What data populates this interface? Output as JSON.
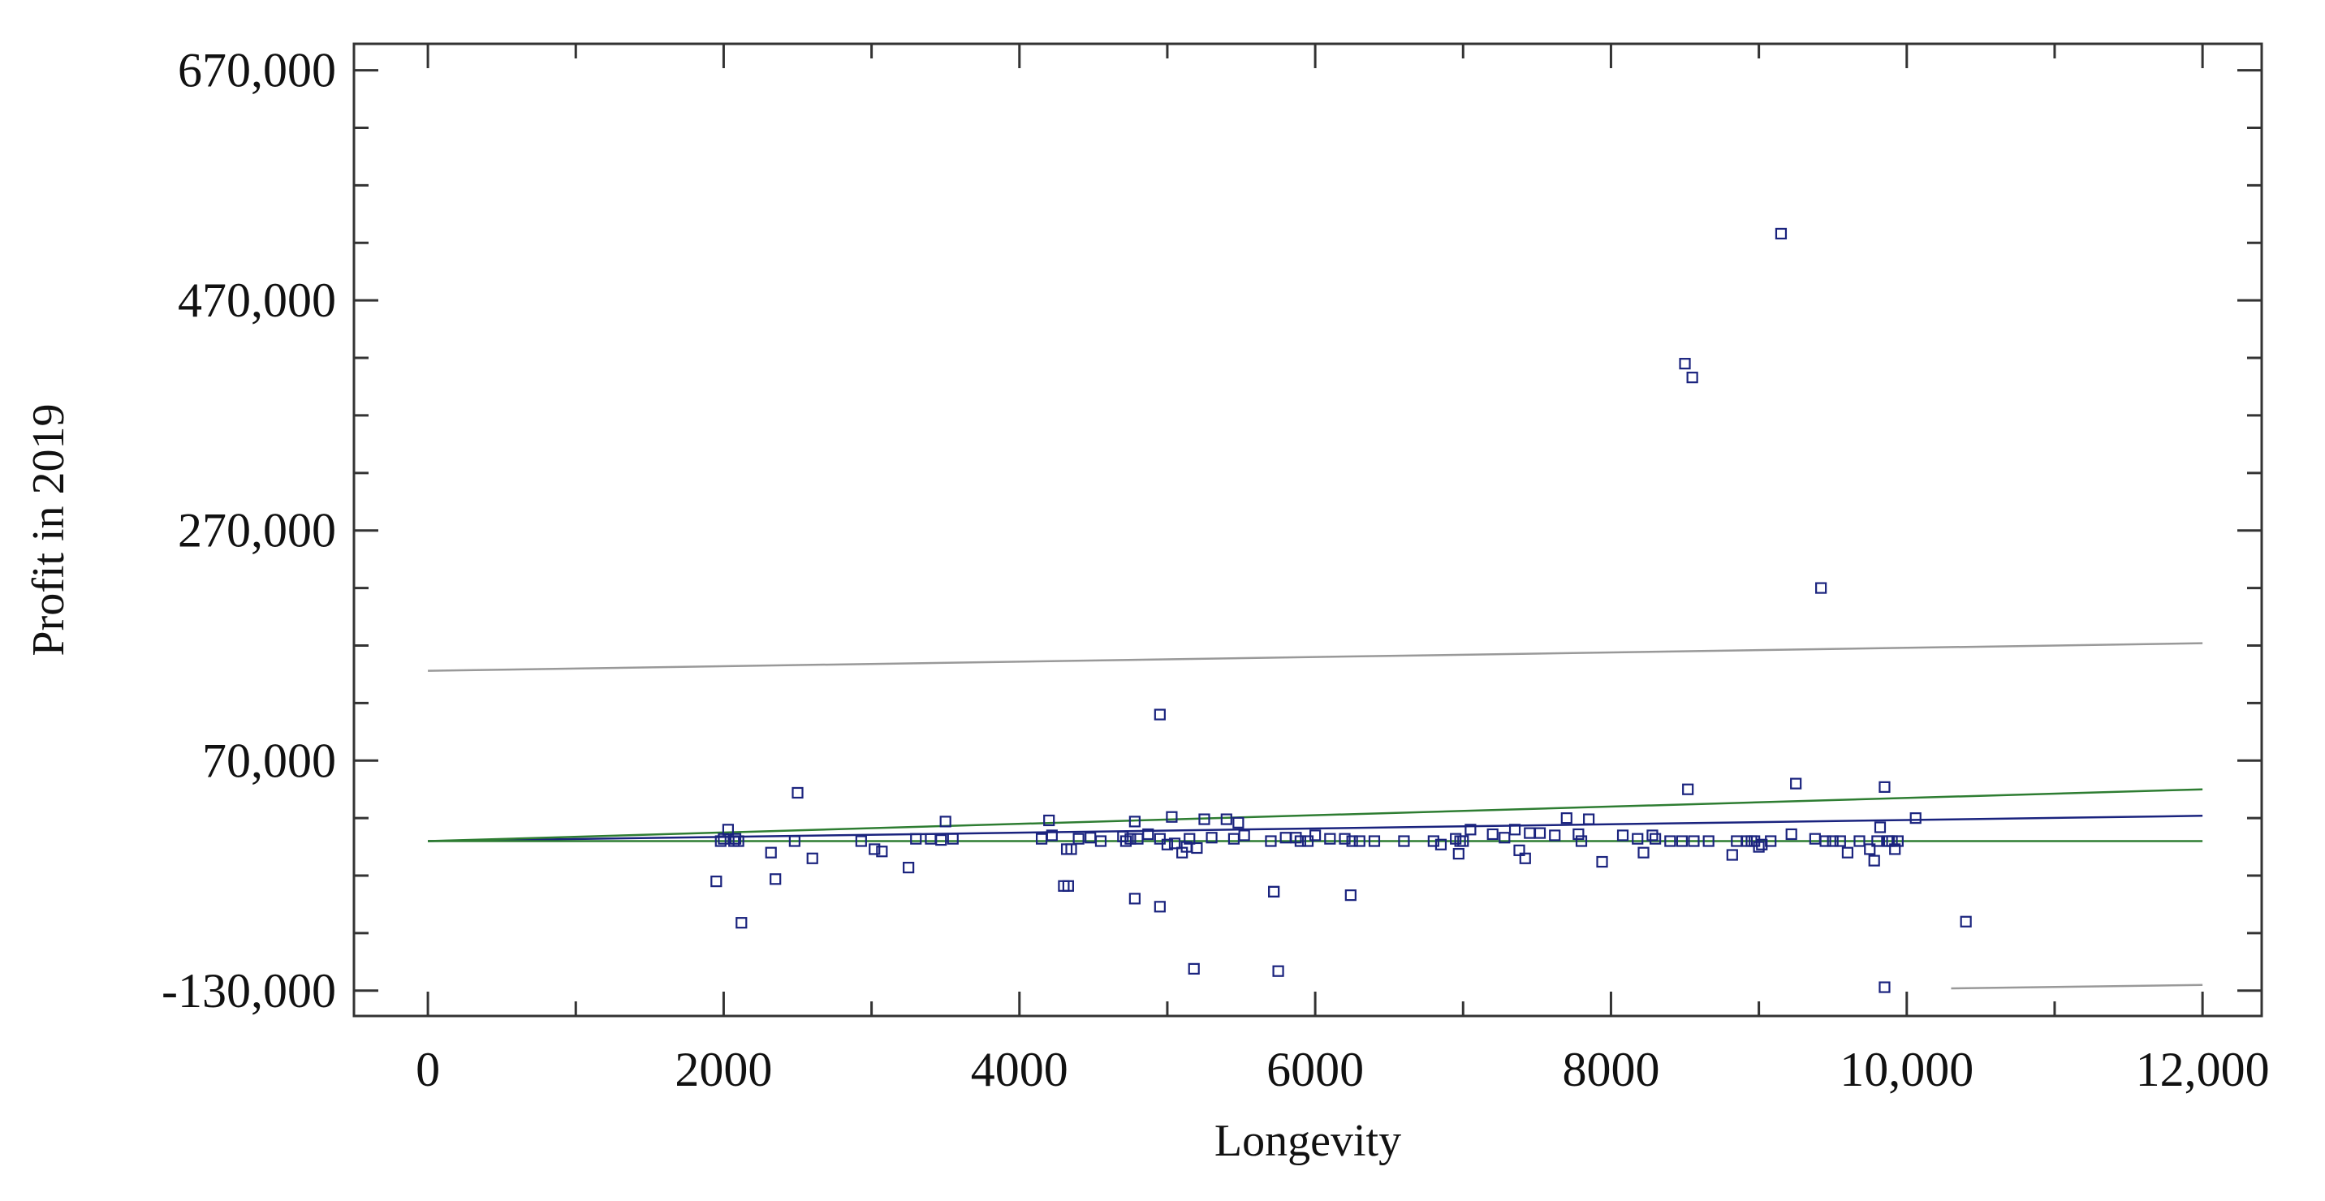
{
  "chart_data": {
    "type": "scatter",
    "xlabel": "Longevity",
    "ylabel": "Profit in 2019",
    "xlim": [
      -500,
      12400
    ],
    "ylim": [
      -152000,
      693000
    ],
    "x_ticks": [
      0,
      2000,
      4000,
      6000,
      8000,
      10000,
      12000
    ],
    "x_tick_labels": [
      "0",
      "2000",
      "4000",
      "6000",
      "8000",
      "10,000",
      "12,000"
    ],
    "y_ticks": [
      -130000,
      70000,
      270000,
      470000,
      670000
    ],
    "y_tick_labels": [
      "-130,000",
      "70,000",
      "270,000",
      "470,000",
      "670,000"
    ],
    "y_minor_step": 50000,
    "x_minor_step": 1000,
    "grid": false,
    "colors": {
      "points": "#1a237e",
      "fit_line": "#1a237e",
      "confidence_band": "#2e7d32",
      "prediction_band": "#999999",
      "frame": "#333333"
    },
    "lines": [
      {
        "role": "fit",
        "x": [
          0,
          12000
        ],
        "y": [
          0,
          22000
        ]
      },
      {
        "role": "confidence-upper",
        "x": [
          0,
          12000
        ],
        "y": [
          0,
          45000
        ]
      },
      {
        "role": "confidence-lower",
        "x": [
          0,
          12000
        ],
        "y": [
          0,
          0
        ]
      },
      {
        "role": "prediction-upper",
        "x": [
          0,
          12000
        ],
        "y": [
          148000,
          172000
        ]
      },
      {
        "role": "prediction-lower",
        "x": [
          10300,
          12000
        ],
        "y": [
          -128000,
          -125000
        ]
      }
    ],
    "points": {
      "x": [
        9150,
        8500,
        8550,
        9420,
        4950,
        2500,
        9250,
        8520,
        9850,
        1950,
        1980,
        2000,
        2030,
        2080,
        2070,
        2100,
        2320,
        2350,
        2480,
        2600,
        2930,
        3020,
        3070,
        3250,
        3300,
        3400,
        3470,
        3500,
        3550,
        4150,
        4200,
        4220,
        4300,
        4320,
        4350,
        4400,
        4480,
        4550,
        4700,
        4720,
        4750,
        4780,
        4800,
        4870,
        4950,
        5000,
        5030,
        5050,
        5100,
        5130,
        5150,
        5200,
        5250,
        5300,
        5400,
        5450,
        5480,
        5520,
        5700,
        5720,
        5800,
        5870,
        5900,
        5950,
        6000,
        6100,
        6200,
        6250,
        6300,
        6400,
        6600,
        6800,
        6850,
        6950,
        6970,
        6980,
        7000,
        7050,
        7200,
        7280,
        7350,
        7380,
        7420,
        7450,
        7520,
        7620,
        7700,
        7780,
        7800,
        7850,
        7940,
        8080,
        8180,
        8220,
        8280,
        8300,
        8400,
        8480,
        8560,
        8660,
        8820,
        8850,
        8920,
        8950,
        8970,
        9000,
        9020,
        9080,
        9220,
        9380,
        9450,
        9500,
        9550,
        9600,
        9680,
        9750,
        9780,
        9800,
        9820,
        9870,
        9880,
        9900,
        9920,
        9940,
        10060,
        10400,
        9850,
        5750,
        5180,
        4950,
        4780,
        4330,
        6240,
        5720,
        2120
      ],
      "y": [
        528000,
        415000,
        403000,
        220000,
        110000,
        42000,
        50000,
        45000,
        47000,
        -35000,
        0,
        2000,
        10000,
        2000,
        0,
        0,
        -10000,
        -33000,
        0,
        -15000,
        0,
        -7000,
        -9000,
        -23000,
        2000,
        2000,
        1000,
        17000,
        2000,
        2000,
        18000,
        5000,
        -39000,
        -7000,
        -7000,
        2000,
        3000,
        0,
        4000,
        0,
        2000,
        17000,
        2000,
        6000,
        2000,
        -3000,
        21000,
        -2000,
        -10000,
        -5000,
        2000,
        -6000,
        19000,
        3000,
        19000,
        2000,
        16000,
        5000,
        0,
        -44000,
        3000,
        3000,
        0,
        0,
        5000,
        2000,
        2000,
        0,
        0,
        0,
        0,
        0,
        -3000,
        2000,
        -11000,
        0,
        0,
        10000,
        6000,
        3000,
        10000,
        -8000,
        -15000,
        7000,
        7000,
        5000,
        20000,
        6000,
        0,
        19000,
        -18000,
        5000,
        2000,
        -10000,
        5000,
        2000,
        0,
        0,
        0,
        0,
        -12000,
        0,
        0,
        0,
        0,
        -5000,
        -3000,
        0,
        6000,
        2000,
        0,
        0,
        0,
        -10000,
        0,
        -7000,
        -17000,
        0,
        12000,
        0,
        0,
        0,
        -7000,
        0,
        20000,
        -70000,
        -127000,
        -113000,
        -111000,
        -57000,
        -50000,
        -39000,
        -47000,
        -44000,
        -71000
      ]
    }
  }
}
